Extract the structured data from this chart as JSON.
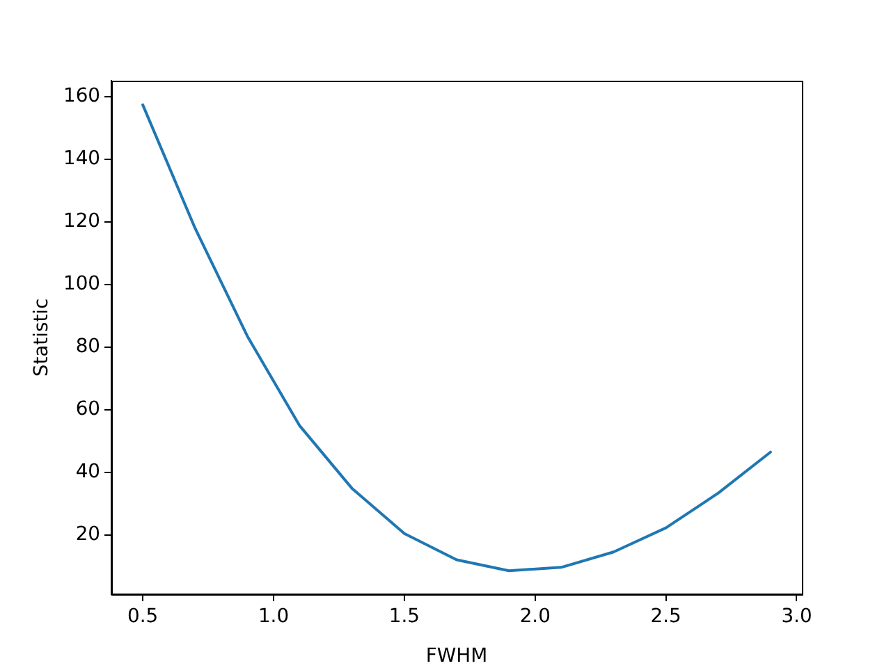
{
  "chart_data": {
    "type": "line",
    "xlabel": "FWHM",
    "ylabel": "Statistic",
    "x": [
      0.5,
      0.7,
      0.9,
      1.1,
      1.3,
      1.5,
      1.7,
      1.9,
      2.1,
      2.3,
      2.5,
      2.7,
      2.9
    ],
    "series": [
      {
        "color": "#1f77b4",
        "values": [
          157.3,
          117.9,
          83.4,
          54.8,
          34.8,
          20.4,
          12.0,
          8.5,
          9.6,
          14.5,
          22.2,
          33.3,
          46.4
        ]
      }
    ],
    "xlim": [
      0.38,
      3.02
    ],
    "ylim": [
      1,
      165
    ],
    "xticks": [
      {
        "value": 0.5,
        "label": "0.5"
      },
      {
        "value": 1,
        "label": "1.0"
      },
      {
        "value": 1.5,
        "label": "1.5"
      },
      {
        "value": 2,
        "label": "2.0"
      },
      {
        "value": 2.5,
        "label": "2.5"
      },
      {
        "value": 3,
        "label": "3.0"
      }
    ],
    "yticks": [
      20,
      40,
      60,
      80,
      100,
      120,
      140,
      160
    ],
    "grid": false,
    "legend": false
  }
}
